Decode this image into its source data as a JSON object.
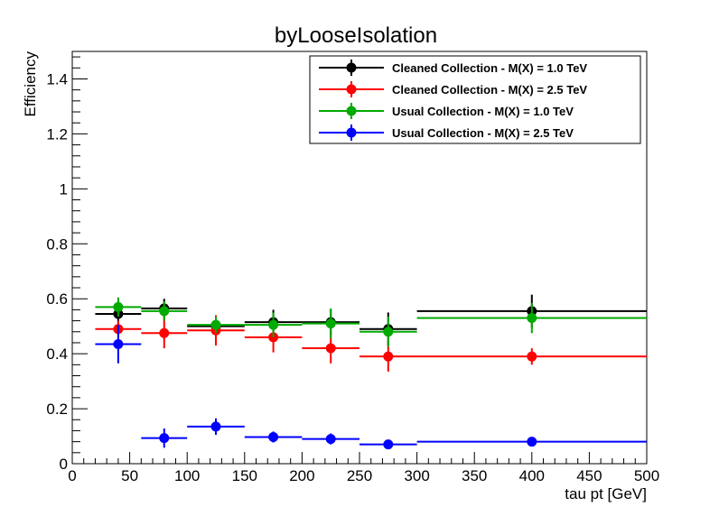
{
  "chart_data": {
    "type": "scatter",
    "title": "byLooseIsolation",
    "xlabel": "tau pt [GeV]",
    "ylabel": "Efficiency",
    "xlim": [
      0,
      500
    ],
    "ylim": [
      0,
      1.5
    ],
    "x_ticks": [
      0,
      50,
      100,
      150,
      200,
      250,
      300,
      350,
      400,
      450,
      500
    ],
    "x_tick_labels": [
      "0",
      "50",
      "100",
      "150",
      "200",
      "250",
      "300",
      "350",
      "400",
      "450",
      "500"
    ],
    "y_ticks": [
      0,
      0.2,
      0.4,
      0.6,
      0.8,
      1.0,
      1.2,
      1.4
    ],
    "y_tick_labels": [
      "0",
      "0.2",
      "0.4",
      "0.6",
      "0.8",
      "1",
      "1.2",
      "1.4"
    ],
    "grid": false,
    "legend_position": "top-right",
    "series": [
      {
        "name": "Cleaned Collection - M(X) = 1.0 TeV",
        "color": "#000000",
        "points": [
          {
            "x": 40,
            "xlo": 20,
            "xhi": 60,
            "y": 0.545,
            "ylo": 0.51,
            "yhi": 0.58
          },
          {
            "x": 80,
            "xlo": 60,
            "xhi": 100,
            "y": 0.565,
            "ylo": 0.53,
            "yhi": 0.6
          },
          {
            "x": 125,
            "xlo": 100,
            "xhi": 150,
            "y": 0.5,
            "ylo": 0.47,
            "yhi": 0.53
          },
          {
            "x": 175,
            "xlo": 150,
            "xhi": 200,
            "y": 0.515,
            "ylo": 0.47,
            "yhi": 0.56
          },
          {
            "x": 225,
            "xlo": 200,
            "xhi": 250,
            "y": 0.515,
            "ylo": 0.47,
            "yhi": 0.56
          },
          {
            "x": 275,
            "xlo": 250,
            "xhi": 300,
            "y": 0.49,
            "ylo": 0.43,
            "yhi": 0.55
          },
          {
            "x": 400,
            "xlo": 300,
            "xhi": 500,
            "y": 0.555,
            "ylo": 0.495,
            "yhi": 0.615
          }
        ]
      },
      {
        "name": "Cleaned Collection - M(X) = 2.5 TeV",
        "color": "#ff0000",
        "points": [
          {
            "x": 40,
            "xlo": 20,
            "xhi": 60,
            "y": 0.49,
            "ylo": 0.46,
            "yhi": 0.52
          },
          {
            "x": 80,
            "xlo": 60,
            "xhi": 100,
            "y": 0.475,
            "ylo": 0.42,
            "yhi": 0.53
          },
          {
            "x": 125,
            "xlo": 100,
            "xhi": 150,
            "y": 0.485,
            "ylo": 0.43,
            "yhi": 0.54
          },
          {
            "x": 175,
            "xlo": 150,
            "xhi": 200,
            "y": 0.46,
            "ylo": 0.405,
            "yhi": 0.515
          },
          {
            "x": 225,
            "xlo": 200,
            "xhi": 250,
            "y": 0.42,
            "ylo": 0.365,
            "yhi": 0.475
          },
          {
            "x": 275,
            "xlo": 250,
            "xhi": 300,
            "y": 0.39,
            "ylo": 0.335,
            "yhi": 0.445
          },
          {
            "x": 400,
            "xlo": 300,
            "xhi": 500,
            "y": 0.39,
            "ylo": 0.36,
            "yhi": 0.42
          }
        ]
      },
      {
        "name": "Usual Collection - M(X) = 1.0 TeV",
        "color": "#00aa00",
        "points": [
          {
            "x": 40,
            "xlo": 20,
            "xhi": 60,
            "y": 0.57,
            "ylo": 0.535,
            "yhi": 0.605
          },
          {
            "x": 80,
            "xlo": 60,
            "xhi": 100,
            "y": 0.555,
            "ylo": 0.52,
            "yhi": 0.59
          },
          {
            "x": 125,
            "xlo": 100,
            "xhi": 150,
            "y": 0.505,
            "ylo": 0.475,
            "yhi": 0.535
          },
          {
            "x": 175,
            "xlo": 150,
            "xhi": 200,
            "y": 0.505,
            "ylo": 0.46,
            "yhi": 0.55
          },
          {
            "x": 225,
            "xlo": 200,
            "xhi": 250,
            "y": 0.51,
            "ylo": 0.455,
            "yhi": 0.565
          },
          {
            "x": 275,
            "xlo": 250,
            "xhi": 300,
            "y": 0.48,
            "ylo": 0.425,
            "yhi": 0.535
          },
          {
            "x": 400,
            "xlo": 300,
            "xhi": 500,
            "y": 0.53,
            "ylo": 0.475,
            "yhi": 0.585
          }
        ]
      },
      {
        "name": "Usual Collection - M(X) = 2.5 TeV",
        "color": "#0000ff",
        "points": [
          {
            "x": 40,
            "xlo": 20,
            "xhi": 60,
            "y": 0.435,
            "ylo": 0.365,
            "yhi": 0.505
          },
          {
            "x": 80,
            "xlo": 60,
            "xhi": 100,
            "y": 0.093,
            "ylo": 0.058,
            "yhi": 0.128
          },
          {
            "x": 125,
            "xlo": 100,
            "xhi": 150,
            "y": 0.135,
            "ylo": 0.105,
            "yhi": 0.165
          },
          {
            "x": 175,
            "xlo": 150,
            "xhi": 200,
            "y": 0.097,
            "ylo": 0.077,
            "yhi": 0.117
          },
          {
            "x": 225,
            "xlo": 200,
            "xhi": 250,
            "y": 0.09,
            "ylo": 0.07,
            "yhi": 0.11
          },
          {
            "x": 275,
            "xlo": 250,
            "xhi": 300,
            "y": 0.07,
            "ylo": 0.058,
            "yhi": 0.082
          },
          {
            "x": 400,
            "xlo": 300,
            "xhi": 500,
            "y": 0.08,
            "ylo": 0.072,
            "yhi": 0.088
          }
        ]
      }
    ]
  }
}
